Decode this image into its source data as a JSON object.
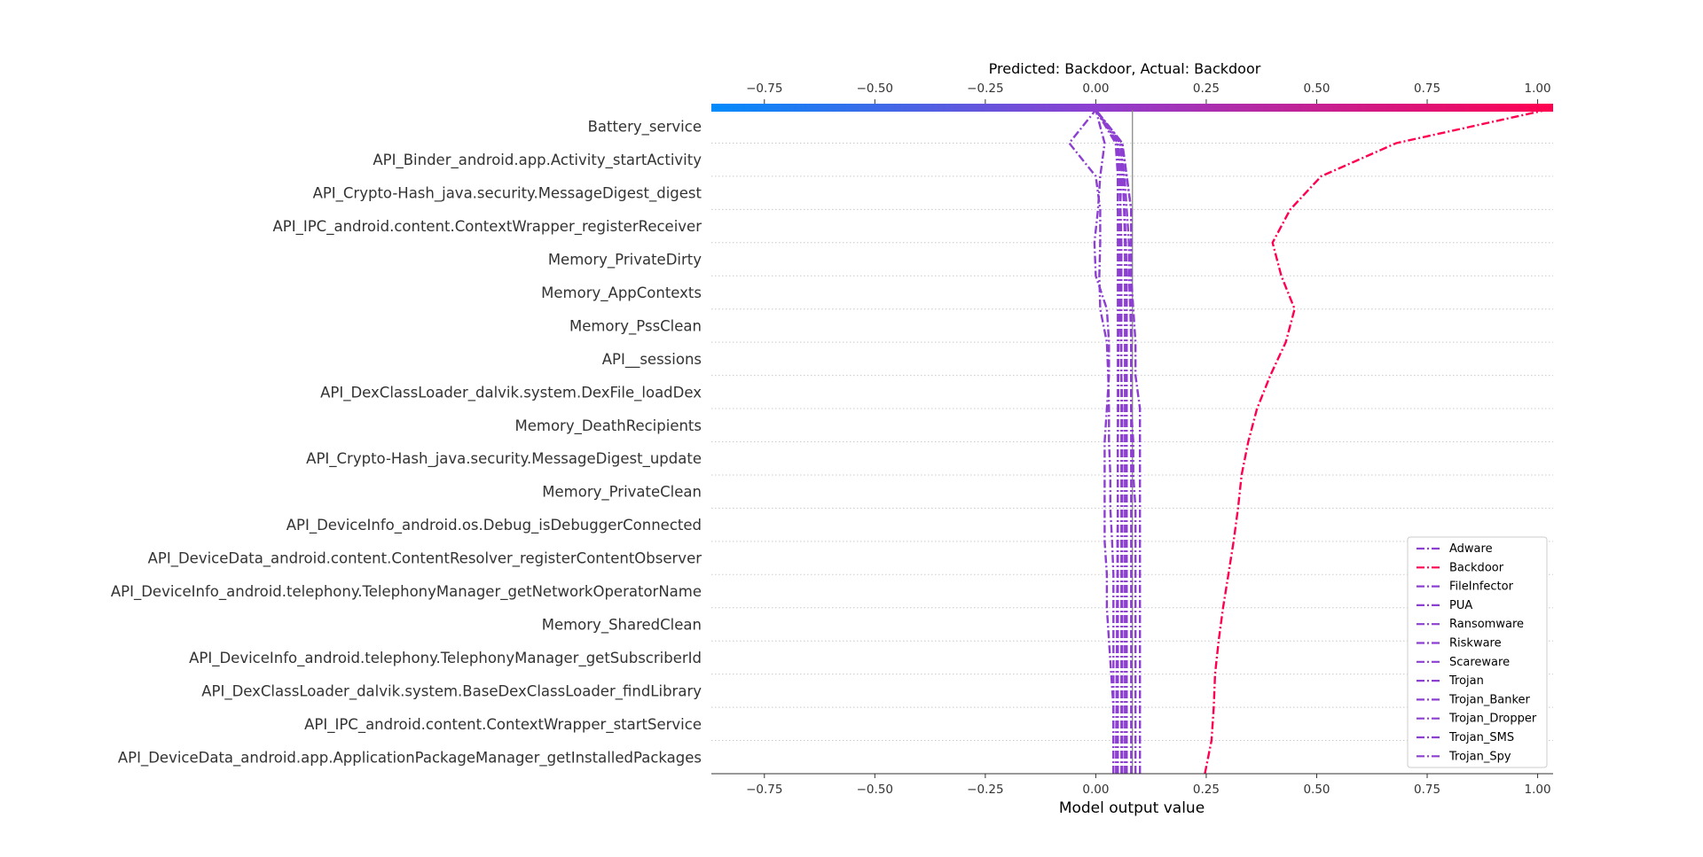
{
  "chart_data": {
    "type": "line",
    "title": "Predicted: Backdoor, Actual: Backdoor",
    "xlabel": "Model output value",
    "ylabel": "",
    "xlim": [
      -0.87,
      1.035
    ],
    "xticks": [
      -0.75,
      -0.5,
      -0.25,
      0.0,
      0.25,
      0.5,
      0.75,
      1.0
    ],
    "xtick_labels": [
      "−0.75",
      "−0.50",
      "−0.25",
      "0.00",
      "0.25",
      "0.50",
      "0.75",
      "1.00"
    ],
    "base_value": 0.083,
    "colorbar": {
      "from": "#008bfb",
      "mid": "#8c3fd0",
      "to": "#ff0051"
    },
    "features": [
      "Battery_service",
      "API_Binder_android.app.Activity_startActivity",
      "API_Crypto-Hash_java.security.MessageDigest_digest",
      "API_IPC_android.content.ContextWrapper_registerReceiver",
      "Memory_PrivateDirty",
      "Memory_AppContexts",
      "Memory_PssClean",
      "API__sessions",
      "API_DexClassLoader_dalvik.system.DexFile_loadDex",
      "Memory_DeathRecipients",
      "API_Crypto-Hash_java.security.MessageDigest_update",
      "Memory_PrivateClean",
      "API_DeviceInfo_android.os.Debug_isDebuggerConnected",
      "API_DeviceData_android.content.ContentResolver_registerContentObserver",
      "API_DeviceInfo_android.telephony.TelephonyManager_getNetworkOperatorName",
      "Memory_SharedClean",
      "API_DeviceInfo_android.telephony.TelephonyManager_getSubscriberId",
      "API_DexClassLoader_dalvik.system.BaseDexClassLoader_findLibrary",
      "API_IPC_android.content.ContextWrapper_startService",
      "API_DeviceData_android.app.ApplicationPackageManager_getInstalledPackages"
    ],
    "legend_position": "lower-right",
    "series": [
      {
        "name": "Adware",
        "color": "#8c3fd0",
        "values": [
          0.046,
          0.046,
          0.047,
          0.047,
          0.048,
          0.048,
          0.049,
          0.049,
          0.05,
          0.05,
          0.05,
          0.051,
          0.051,
          0.052,
          0.052,
          0.053,
          0.054,
          0.055,
          0.058,
          0.06,
          0.0
        ]
      },
      {
        "name": "Backdoor",
        "color": "#ff0051",
        "values": [
          0.247,
          0.262,
          0.267,
          0.27,
          0.278,
          0.288,
          0.3,
          0.312,
          0.322,
          0.33,
          0.345,
          0.365,
          0.395,
          0.43,
          0.45,
          0.42,
          0.4,
          0.44,
          0.51,
          0.68,
          1.02
        ]
      },
      {
        "name": "FileInfector",
        "color": "#8c3fd0",
        "values": [
          0.1,
          0.1,
          0.1,
          0.1,
          0.1,
          0.1,
          0.1,
          0.1,
          0.1,
          0.1,
          0.1,
          0.1,
          0.09,
          0.09,
          0.085,
          0.08,
          0.08,
          0.08,
          0.07,
          0.06,
          0.0
        ]
      },
      {
        "name": "PUA",
        "color": "#8c3fd0",
        "values": [
          0.04,
          0.04,
          0.04,
          0.04,
          0.04,
          0.04,
          0.04,
          0.037,
          0.033,
          0.033,
          0.03,
          0.03,
          0.028,
          0.025,
          0.01,
          0.008,
          0.01,
          0.01,
          0.0,
          -0.06,
          0.0
        ]
      },
      {
        "name": "Ransomware",
        "color": "#8c3fd0",
        "values": [
          0.06,
          0.06,
          0.06,
          0.06,
          0.06,
          0.06,
          0.06,
          0.06,
          0.06,
          0.06,
          0.06,
          0.06,
          0.058,
          0.058,
          0.055,
          0.055,
          0.052,
          0.05,
          0.05,
          0.045,
          0.0
        ]
      },
      {
        "name": "Riskware",
        "color": "#8c3fd0",
        "values": [
          0.09,
          0.09,
          0.09,
          0.09,
          0.09,
          0.09,
          0.09,
          0.09,
          0.09,
          0.085,
          0.085,
          0.08,
          0.08,
          0.08,
          0.078,
          0.075,
          0.075,
          0.07,
          0.065,
          0.055,
          0.0
        ]
      },
      {
        "name": "Scareware",
        "color": "#8c3fd0",
        "values": [
          0.04,
          0.04,
          0.04,
          0.035,
          0.03,
          0.025,
          0.025,
          0.02,
          0.02,
          0.02,
          0.02,
          0.025,
          0.03,
          0.03,
          0.025,
          0.0,
          -0.003,
          0.005,
          0.01,
          0.02,
          0.0
        ]
      },
      {
        "name": "Trojan",
        "color": "#8c3fd0",
        "values": [
          0.05,
          0.05,
          0.05,
          0.05,
          0.05,
          0.05,
          0.05,
          0.05,
          0.05,
          0.05,
          0.05,
          0.05,
          0.05,
          0.05,
          0.05,
          0.05,
          0.05,
          0.05,
          0.05,
          0.05,
          0.0
        ]
      },
      {
        "name": "Trojan_Banker",
        "color": "#8c3fd0",
        "values": [
          0.07,
          0.07,
          0.07,
          0.07,
          0.07,
          0.07,
          0.07,
          0.07,
          0.07,
          0.07,
          0.07,
          0.07,
          0.07,
          0.07,
          0.07,
          0.07,
          0.068,
          0.065,
          0.06,
          0.05,
          0.0
        ]
      },
      {
        "name": "Trojan_Dropper",
        "color": "#8c3fd0",
        "values": [
          0.066,
          0.066,
          0.066,
          0.066,
          0.066,
          0.066,
          0.066,
          0.066,
          0.066,
          0.066,
          0.066,
          0.066,
          0.066,
          0.066,
          0.066,
          0.066,
          0.066,
          0.064,
          0.062,
          0.056,
          0.0
        ]
      },
      {
        "name": "Trojan_SMS",
        "color": "#8c3fd0",
        "values": [
          0.08,
          0.08,
          0.08,
          0.08,
          0.08,
          0.08,
          0.08,
          0.08,
          0.08,
          0.08,
          0.08,
          0.08,
          0.08,
          0.08,
          0.08,
          0.08,
          0.08,
          0.08,
          0.07,
          0.06,
          0.0
        ]
      },
      {
        "name": "Trojan_Spy",
        "color": "#8c3fd0",
        "values": [
          0.058,
          0.058,
          0.058,
          0.058,
          0.058,
          0.058,
          0.058,
          0.058,
          0.058,
          0.058,
          0.058,
          0.058,
          0.058,
          0.058,
          0.058,
          0.058,
          0.058,
          0.056,
          0.054,
          0.05,
          0.0
        ]
      }
    ]
  }
}
